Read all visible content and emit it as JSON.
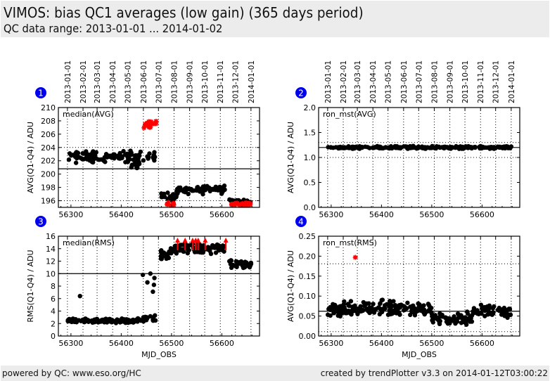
{
  "header": {
    "title": "VIMOS: bias QC1 averages (low gain) (365 days period)",
    "subtitle": "QC data range: 2013-01-01 ... 2014-01-02"
  },
  "footer": {
    "left": "powered by QC: www.eso.org/HC",
    "right": "created by trendPlotter v3.3 on 2014-01-12T03:00:22"
  },
  "colors": {
    "badge": "#0000ee",
    "points": "#000000",
    "outliers": "#ff0000"
  },
  "date_ticks": [
    "2013-01-01",
    "2013-02-01",
    "2013-03-01",
    "2013-04-01",
    "2013-05-01",
    "2013-06-01",
    "2013-07-01",
    "2013-08-01",
    "2013-09-01",
    "2013-10-01",
    "2013-11-01",
    "2013-12-01",
    "2014-01-01"
  ],
  "date_tick_mjd": [
    56293,
    56324,
    56352,
    56383,
    56413,
    56444,
    56474,
    56505,
    56536,
    56566,
    56597,
    56627,
    56658
  ],
  "chart_data": [
    {
      "id": "1",
      "type": "scatter",
      "label": "median(AVG)",
      "ylabel": "AVG(Q1-Q4) / ADU",
      "xlabel": "",
      "xlim": [
        56275,
        56675
      ],
      "ylim": [
        195,
        210
      ],
      "xticks": [
        56300,
        56400,
        56500,
        56600
      ],
      "yticks": [
        196,
        198,
        200,
        202,
        204,
        206,
        208,
        210
      ],
      "ref_line": 200.8,
      "limits": [
        196,
        204
      ],
      "grid": true,
      "segments": [
        {
          "x0": 56293,
          "x1": 56470,
          "ymean": 202.6,
          "spread": 0.7,
          "n": 120,
          "color": "black"
        },
        {
          "x0": 56420,
          "x1": 56440,
          "ymean": 201.3,
          "spread": 0.4,
          "n": 12,
          "color": "black"
        },
        {
          "x0": 56475,
          "x1": 56510,
          "ymean": 196.5,
          "spread": 0.5,
          "n": 25,
          "color": "black"
        },
        {
          "x0": 56510,
          "x1": 56608,
          "ymean": 197.7,
          "spread": 0.5,
          "n": 80,
          "color": "black"
        },
        {
          "x0": 56615,
          "x1": 56660,
          "ymean": 195.9,
          "spread": 0.3,
          "n": 25,
          "color": "black"
        }
      ],
      "outliers": [
        {
          "x0": 56443,
          "x1": 56470,
          "ymean": 207.5,
          "spread": 0.5,
          "n": 18
        },
        {
          "x0": 56490,
          "x1": 56505,
          "ymean": 195.5,
          "spread": 0.2,
          "n": 10
        },
        {
          "x0": 56618,
          "x1": 56660,
          "ymean": 195.5,
          "spread": 0.2,
          "n": 30
        }
      ]
    },
    {
      "id": "2",
      "type": "scatter",
      "label": "ron_mst(AVG)",
      "ylabel": "AVG(Q1-Q4) / ADU",
      "xlabel": "",
      "xlim": [
        56275,
        56675
      ],
      "ylim": [
        0,
        2
      ],
      "xticks": [
        56300,
        56400,
        56500,
        56600
      ],
      "yticks": [
        0.0,
        0.5,
        1.0,
        1.5,
        2.0
      ],
      "ref_line": 1.2,
      "limits": [
        1.0,
        1.3
      ],
      "grid": true,
      "segments": [
        {
          "x0": 56293,
          "x1": 56660,
          "ymean": 1.2,
          "spread": 0.02,
          "n": 250,
          "color": "black"
        }
      ],
      "outliers": []
    },
    {
      "id": "3",
      "type": "scatter",
      "label": "median(RMS)",
      "ylabel": "RMS(Q1-Q4) / ADU",
      "xlabel": "MJD_OBS",
      "xlim": [
        56275,
        56675
      ],
      "ylim": [
        0,
        16
      ],
      "xticks": [
        56300,
        56400,
        56500,
        56600
      ],
      "yticks": [
        0,
        2,
        4,
        6,
        8,
        10,
        12,
        14,
        16
      ],
      "ref_line": 10,
      "limits": [],
      "grid": true,
      "segments": [
        {
          "x0": 56293,
          "x1": 56430,
          "ymean": 2.4,
          "spread": 0.3,
          "n": 130,
          "color": "black"
        },
        {
          "x0": 56430,
          "x1": 56465,
          "ymean": 2.8,
          "spread": 0.6,
          "n": 20,
          "color": "black"
        },
        {
          "x0": 56475,
          "x1": 56500,
          "ymean": 13.0,
          "spread": 0.9,
          "n": 20,
          "color": "black"
        },
        {
          "x0": 56500,
          "x1": 56610,
          "ymean": 14.0,
          "spread": 0.7,
          "n": 80,
          "color": "black"
        },
        {
          "x0": 56615,
          "x1": 56660,
          "ymean": 11.5,
          "spread": 0.6,
          "n": 35,
          "color": "black"
        }
      ],
      "points": [
        [
          56318,
          6.4
        ],
        [
          56443,
          9.8
        ],
        [
          56452,
          8.6
        ],
        [
          56458,
          10.0
        ],
        [
          56463,
          7.1
        ],
        [
          56465,
          8.2
        ],
        [
          56466,
          9.3
        ],
        [
          56467,
          3.3
        ],
        [
          56468,
          2.5
        ]
      ],
      "arrows_x": [
        56512,
        56527,
        56542,
        56548,
        56553,
        56567,
        56608
      ]
    },
    {
      "id": "4",
      "type": "scatter",
      "label": "ron_mst(RMS)",
      "ylabel": "AVG(Q1-Q4) / ADU",
      "xlabel": "MJD_OBS",
      "xlim": [
        56275,
        56675
      ],
      "ylim": [
        0,
        0.25
      ],
      "xticks": [
        56300,
        56400,
        56500,
        56600
      ],
      "yticks": [
        0.0,
        0.05,
        0.1,
        0.15,
        0.2,
        0.25
      ],
      "ref_line": 0.062,
      "limits": [
        0.011,
        0.181
      ],
      "grid": true,
      "segments": [
        {
          "x0": 56293,
          "x1": 56500,
          "ymean": 0.068,
          "spread": 0.015,
          "n": 180,
          "color": "black"
        },
        {
          "x0": 56500,
          "x1": 56580,
          "ymean": 0.045,
          "spread": 0.015,
          "n": 70,
          "color": "black"
        },
        {
          "x0": 56580,
          "x1": 56660,
          "ymean": 0.062,
          "spread": 0.013,
          "n": 60,
          "color": "black"
        }
      ],
      "outliers": [
        {
          "x0": 56348,
          "x1": 56348,
          "ymean": 0.197,
          "spread": 0.0,
          "n": 1
        }
      ]
    }
  ]
}
